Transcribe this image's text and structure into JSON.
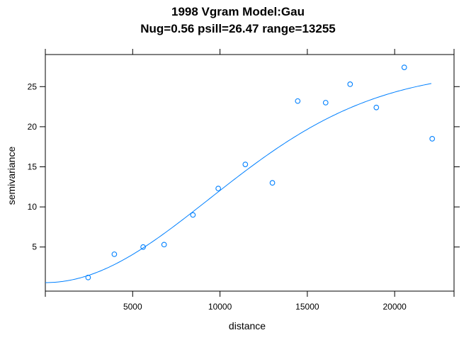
{
  "chart_data": {
    "type": "scatter",
    "title": "1998 Vgram Model:Gau",
    "subtitle": "Nug=0.56 psill=26.47 range=13255",
    "xlabel": "distance",
    "ylabel": "semivariance",
    "xlim": [
      0,
      23400
    ],
    "ylim": [
      -0.5,
      29
    ],
    "xticks": [
      5000,
      10000,
      15000,
      20000
    ],
    "yticks": [
      5,
      10,
      15,
      20,
      25
    ],
    "xtick_labels": [
      "5000",
      "10000",
      "15000",
      "20000"
    ],
    "ytick_labels": [
      "5",
      "10",
      "15",
      "20",
      "25"
    ],
    "grid": false,
    "legend": "none",
    "points": {
      "x": [
        2450,
        3950,
        5600,
        6800,
        8450,
        9900,
        11450,
        13000,
        14450,
        16050,
        17450,
        18950,
        20550,
        22150
      ],
      "y": [
        1.2,
        4.1,
        5.0,
        5.3,
        9.0,
        12.3,
        15.3,
        13.0,
        23.2,
        23.0,
        25.3,
        22.4,
        27.4,
        18.5
      ]
    },
    "model": {
      "type": "Gau",
      "nugget": 0.56,
      "psill": 26.47,
      "range": 13255,
      "x_start": 0,
      "x_end": 22100
    },
    "colors": {
      "points": "#0080ff",
      "line": "#0080ff",
      "axes": "#000000"
    }
  }
}
